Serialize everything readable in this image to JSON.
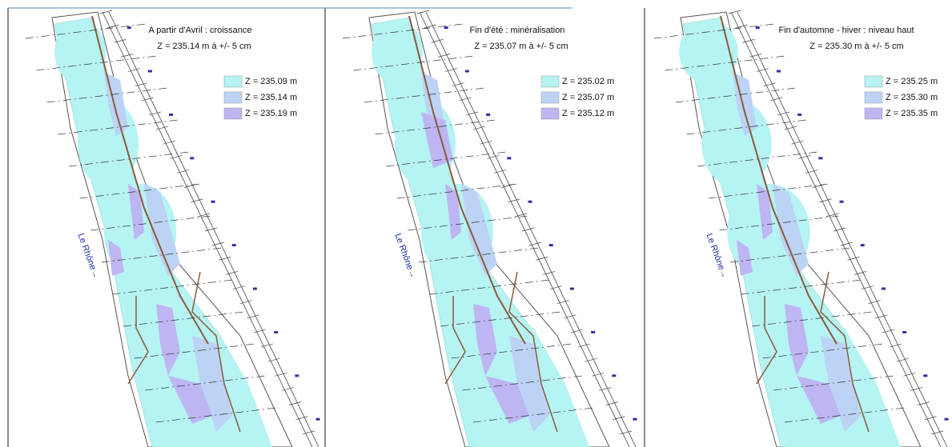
{
  "panels": [
    {
      "title": "A partir d'Avril : croissance",
      "subtitle": "Z = 235.14 m à +/- 5 cm",
      "legend": [
        {
          "label": "Z = 235.09 m",
          "color": "#b6f3f3"
        },
        {
          "label": "Z = 235.14 m",
          "color": "#bcd3f5"
        },
        {
          "label": "Z = 235.19 m",
          "color": "#bdb6f3"
        }
      ],
      "river_label": "Le Rhône→"
    },
    {
      "title": "Fin d'été : minéralisation",
      "subtitle": "Z = 235.07 m à +/- 5 cm",
      "legend": [
        {
          "label": "Z = 235.02 m",
          "color": "#b6f3f3"
        },
        {
          "label": "Z = 235.07 m",
          "color": "#bcd3f5"
        },
        {
          "label": "Z = 235.12 m",
          "color": "#bdb6f3"
        }
      ],
      "river_label": "Le Rhône→"
    },
    {
      "title": "Fin d'automne - hiver : niveau haut",
      "subtitle": "Z = 235.30 m à +/- 5 cm",
      "legend": [
        {
          "label": "Z = 235.25 m",
          "color": "#b6f3f3"
        },
        {
          "label": "Z = 235.30 m",
          "color": "#bcd3f5"
        },
        {
          "label": "Z = 235.35 m",
          "color": "#bdb6f3"
        }
      ],
      "river_label": "Le Rhône→"
    }
  ]
}
